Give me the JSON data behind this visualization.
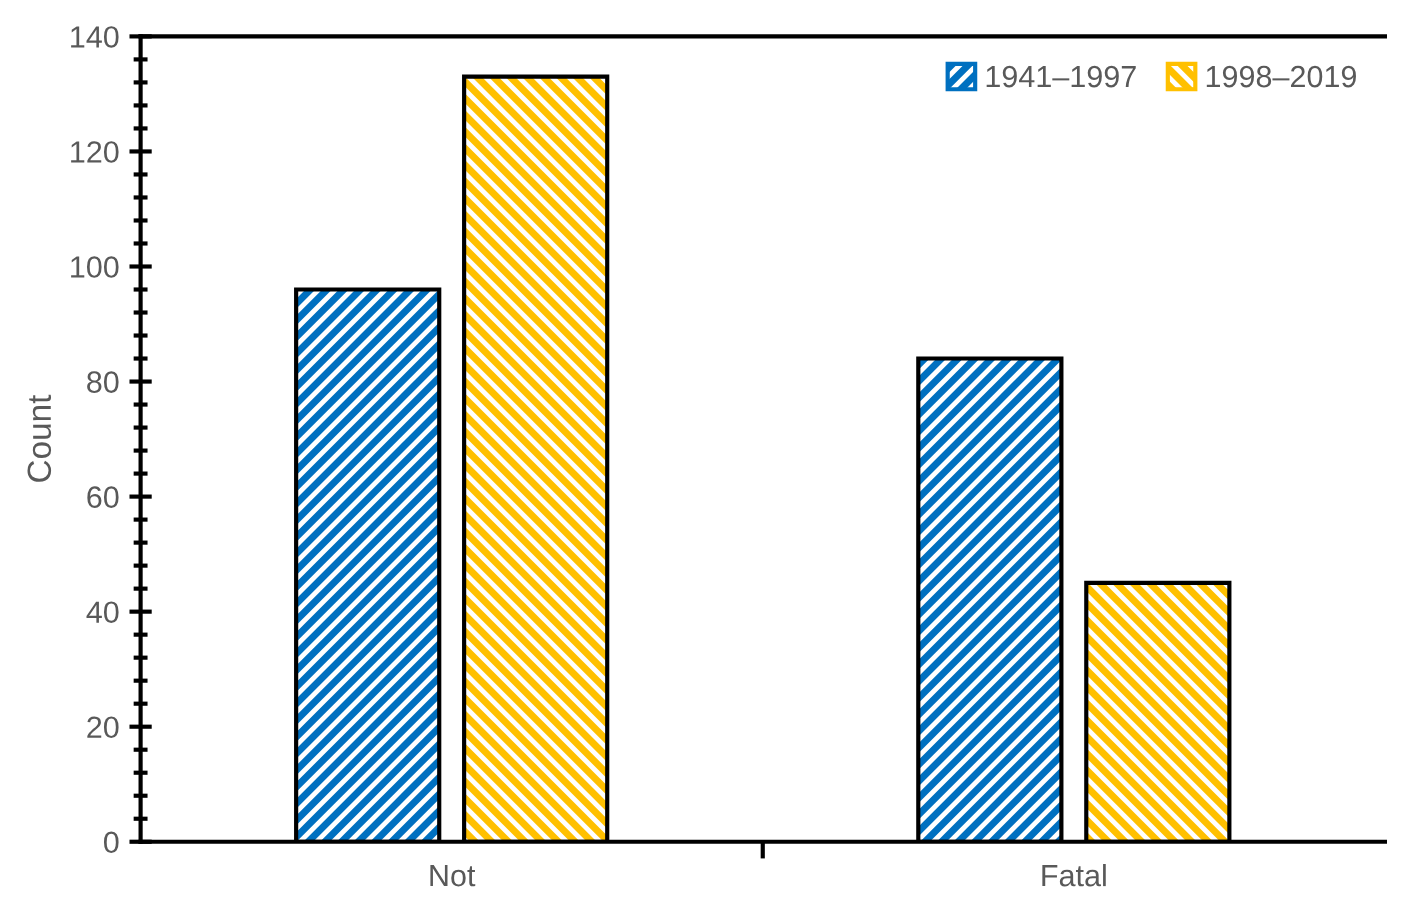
{
  "chart_data": {
    "type": "bar",
    "ylabel": "Count",
    "categories": [
      "Not",
      "Fatal"
    ],
    "series": [
      {
        "name": "1941–1997",
        "color": "#0070c0",
        "values": [
          96,
          84
        ]
      },
      {
        "name": "1998–2019",
        "color": "#ffc000",
        "values": [
          133,
          45
        ]
      }
    ],
    "ylim": [
      0,
      140
    ],
    "yticks": [
      0,
      20,
      40,
      60,
      80,
      100,
      120,
      140
    ],
    "grid": false,
    "legend": "top right"
  }
}
